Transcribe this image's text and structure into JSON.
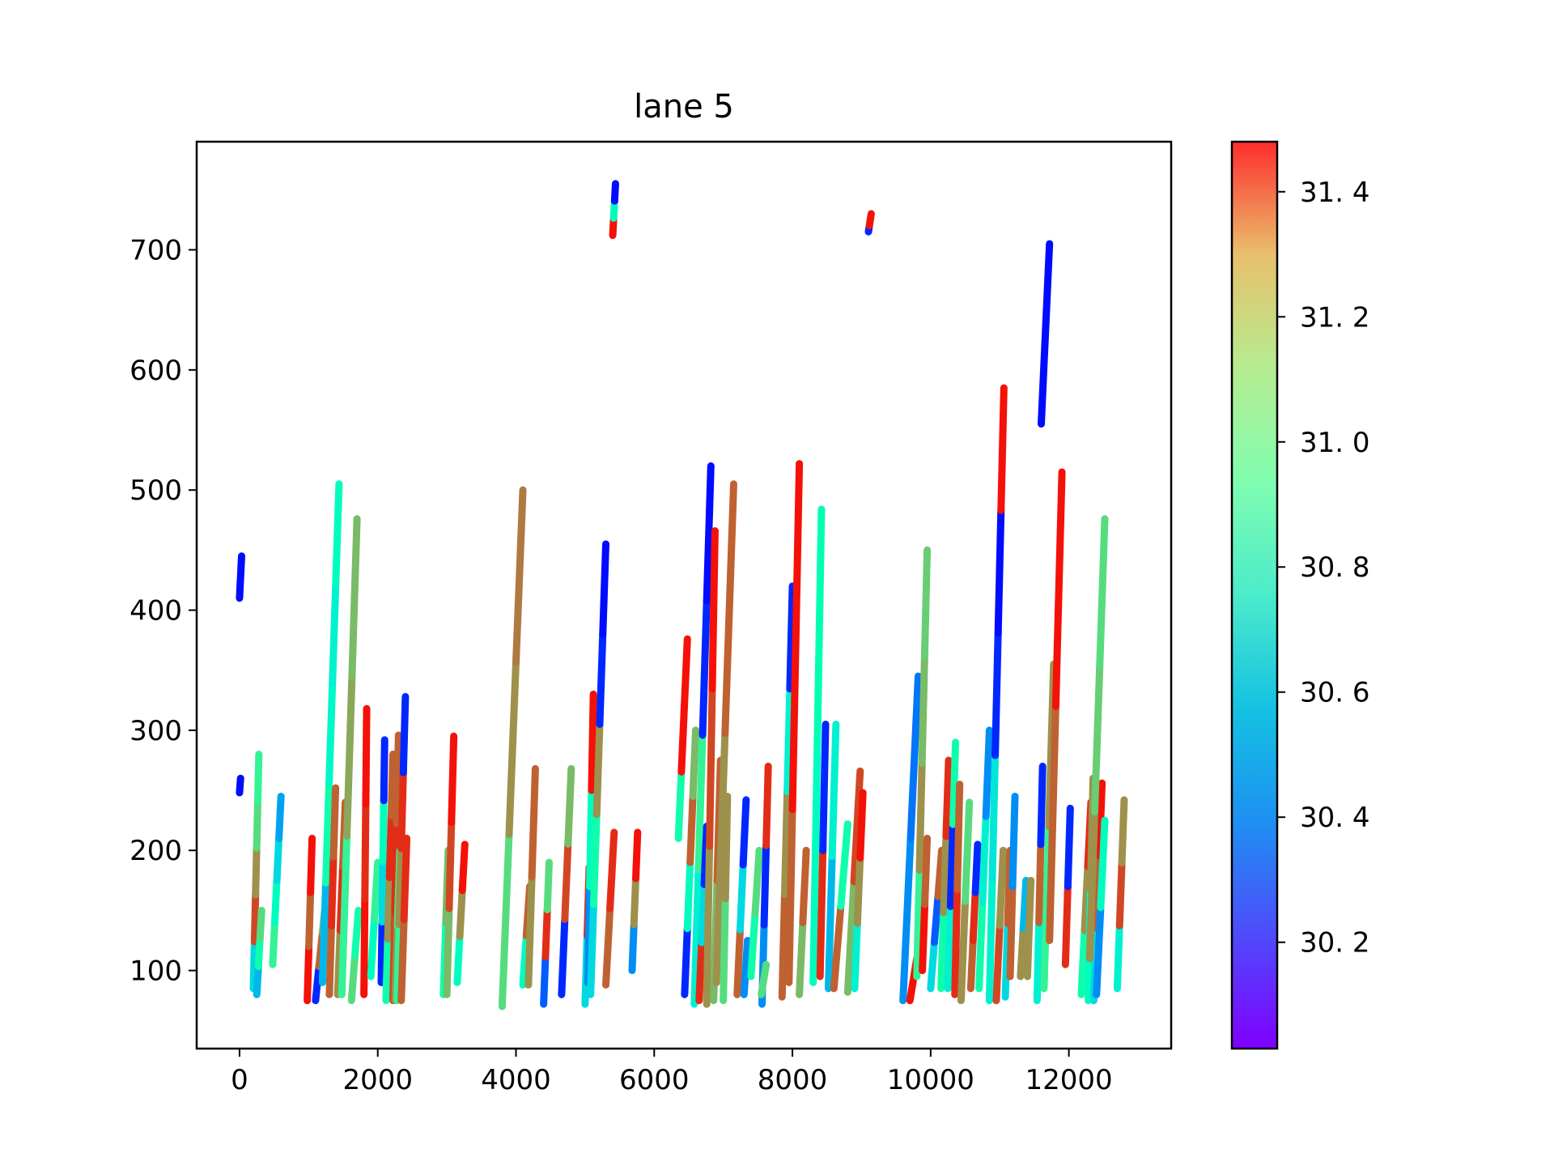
{
  "chart_data": {
    "type": "scatter",
    "title": "lane 5",
    "xlabel": "",
    "ylabel": "",
    "xlim": [
      -620,
      13480
    ],
    "ylim": [
      35,
      790
    ],
    "x_ticks": [
      0,
      2000,
      4000,
      6000,
      8000,
      10000,
      12000
    ],
    "x_tick_labels": [
      "0",
      "2000",
      "4000",
      "6000",
      "8000",
      "10000",
      "12000"
    ],
    "y_ticks": [
      100,
      200,
      300,
      400,
      500,
      600,
      700
    ],
    "y_tick_labels": [
      "100",
      "200",
      "300",
      "400",
      "500",
      "600",
      "700"
    ],
    "grid": false,
    "colormap": "rainbow",
    "colorbar": {
      "range": [
        30.03,
        31.48
      ],
      "ticks": [
        30.2,
        30.4,
        30.6,
        30.8,
        31.0,
        31.2,
        31.4
      ],
      "tick_labels": [
        "30. 2",
        "30. 4",
        "30. 6",
        "30. 8",
        "31. 0",
        "31. 2",
        "31. 4"
      ]
    },
    "trajectories": [
      {
        "x0": 0,
        "x1": 30,
        "y0": 410,
        "y1": 445,
        "c": [
          30.05
        ]
      },
      {
        "x0": 0,
        "x1": 15,
        "y0": 248,
        "y1": 260,
        "c": [
          30.05
        ]
      },
      {
        "x0": 200,
        "x1": 280,
        "y0": 85,
        "y1": 280,
        "c": [
          30.5,
          31.35,
          31.2,
          31.0,
          30.9
        ]
      },
      {
        "x0": 250,
        "x1": 320,
        "y0": 80,
        "y1": 150,
        "c": [
          30.4,
          30.8,
          31.0
        ]
      },
      {
        "x0": 480,
        "x1": 600,
        "y0": 105,
        "y1": 245,
        "c": [
          30.9,
          30.7,
          30.5,
          30.35
        ]
      },
      {
        "x0": 980,
        "x1": 1050,
        "y0": 75,
        "y1": 210,
        "c": [
          31.45,
          31.3,
          31.45
        ]
      },
      {
        "x0": 1100,
        "x1": 1250,
        "y0": 75,
        "y1": 160,
        "c": [
          30.1,
          31.3,
          31.1
        ]
      },
      {
        "x0": 1200,
        "x1": 1440,
        "y0": 90,
        "y1": 505,
        "c": [
          30.4,
          30.8,
          30.65,
          30.6,
          30.7
        ]
      },
      {
        "x0": 1300,
        "x1": 1390,
        "y0": 80,
        "y1": 252,
        "c": [
          31.3,
          31.4,
          31.3
        ]
      },
      {
        "x0": 1420,
        "x1": 1530,
        "y0": 80,
        "y1": 240,
        "c": [
          31.2,
          31.4,
          31.3
        ]
      },
      {
        "x0": 1480,
        "x1": 1700,
        "y0": 80,
        "y1": 476,
        "c": [
          30.9,
          31.15,
          31.1
        ]
      },
      {
        "x0": 1620,
        "x1": 1720,
        "y0": 75,
        "y1": 150,
        "c": [
          31.0,
          30.8
        ]
      },
      {
        "x0": 1800,
        "x1": 1840,
        "y0": 80,
        "y1": 318,
        "c": [
          31.45,
          31.4,
          31.45
        ]
      },
      {
        "x0": 1900,
        "x1": 2000,
        "y0": 95,
        "y1": 190,
        "c": [
          30.7,
          30.9
        ]
      },
      {
        "x0": 2050,
        "x1": 2100,
        "y0": 90,
        "y1": 292,
        "c": [
          30.1,
          30.5,
          30.7,
          30.1
        ]
      },
      {
        "x0": 2120,
        "x1": 2220,
        "y0": 75,
        "y1": 280,
        "c": [
          30.8,
          31.2,
          31.4,
          31.3
        ]
      },
      {
        "x0": 2220,
        "x1": 2300,
        "y0": 75,
        "y1": 296,
        "c": [
          31.35,
          31.4,
          31.3
        ]
      },
      {
        "x0": 2250,
        "x1": 2320,
        "y0": 75,
        "y1": 200,
        "c": [
          31.2,
          31.0
        ]
      },
      {
        "x0": 2280,
        "x1": 2400,
        "y0": 75,
        "y1": 328,
        "c": [
          30.9,
          31.2,
          31.4,
          30.1
        ]
      },
      {
        "x0": 2340,
        "x1": 2420,
        "y0": 75,
        "y1": 210,
        "c": [
          31.3,
          31.4
        ]
      },
      {
        "x0": 2950,
        "x1": 3020,
        "y0": 80,
        "y1": 200,
        "c": [
          30.8,
          31.1
        ]
      },
      {
        "x0": 3000,
        "x1": 3100,
        "y0": 80,
        "y1": 295,
        "c": [
          31.1,
          31.35,
          31.45
        ]
      },
      {
        "x0": 3150,
        "x1": 3260,
        "y0": 90,
        "y1": 205,
        "c": [
          30.7,
          31.2,
          31.45
        ]
      },
      {
        "x0": 3800,
        "x1": 4100,
        "y0": 70,
        "y1": 500,
        "c": [
          31.0,
          31.2,
          31.25
        ]
      },
      {
        "x0": 4100,
        "x1": 4200,
        "y0": 88,
        "y1": 170,
        "c": [
          30.7,
          31.3
        ]
      },
      {
        "x0": 4180,
        "x1": 4280,
        "y0": 88,
        "y1": 268,
        "c": [
          31.2,
          31.3
        ]
      },
      {
        "x0": 4400,
        "x1": 4480,
        "y0": 72,
        "y1": 190,
        "c": [
          30.2,
          31.4,
          31.0
        ]
      },
      {
        "x0": 4660,
        "x1": 4800,
        "y0": 80,
        "y1": 268,
        "c": [
          30.1,
          31.35,
          31.1
        ]
      },
      {
        "x0": 5000,
        "x1": 5060,
        "y0": 72,
        "y1": 186,
        "c": [
          30.5,
          31.4
        ]
      },
      {
        "x0": 5040,
        "x1": 5120,
        "y0": 90,
        "y1": 330,
        "c": [
          30.3,
          30.7,
          31.45
        ]
      },
      {
        "x0": 5080,
        "x1": 5300,
        "y0": 80,
        "y1": 455,
        "c": [
          30.5,
          30.8,
          31.2,
          30.1,
          30.05
        ]
      },
      {
        "x0": 5300,
        "x1": 5420,
        "y0": 88,
        "y1": 215,
        "c": [
          31.3,
          31.4
        ]
      },
      {
        "x0": 5400,
        "x1": 5440,
        "y0": 712,
        "y1": 755,
        "c": [
          31.45,
          30.7,
          30.05
        ]
      },
      {
        "x0": 5680,
        "x1": 5760,
        "y0": 100,
        "y1": 215,
        "c": [
          30.3,
          31.2,
          31.45
        ]
      },
      {
        "x0": 6350,
        "x1": 6480,
        "y0": 210,
        "y1": 376,
        "c": [
          30.8,
          31.45,
          31.45
        ]
      },
      {
        "x0": 6440,
        "x1": 6600,
        "y0": 80,
        "y1": 300,
        "c": [
          30.1,
          30.7,
          31.3,
          31.1
        ]
      },
      {
        "x0": 6580,
        "x1": 6820,
        "y0": 72,
        "y1": 520,
        "c": [
          30.6,
          30.9,
          30.1,
          30.05
        ]
      },
      {
        "x0": 6650,
        "x1": 6760,
        "y0": 75,
        "y1": 220,
        "c": [
          31.4,
          30.5,
          30.1
        ]
      },
      {
        "x0": 6760,
        "x1": 6880,
        "y0": 72,
        "y1": 466,
        "c": [
          31.2,
          31.35,
          31.45
        ]
      },
      {
        "x0": 6860,
        "x1": 6960,
        "y0": 75,
        "y1": 275,
        "c": [
          31.1,
          31.3
        ]
      },
      {
        "x0": 6900,
        "x1": 7150,
        "y0": 90,
        "y1": 505,
        "c": [
          31.2,
          31.3
        ]
      },
      {
        "x0": 7000,
        "x1": 7060,
        "y0": 75,
        "y1": 245,
        "c": [
          31.0,
          31.2
        ]
      },
      {
        "x0": 7200,
        "x1": 7330,
        "y0": 80,
        "y1": 242,
        "c": [
          31.3,
          30.5,
          30.1
        ]
      },
      {
        "x0": 7300,
        "x1": 7350,
        "y0": 80,
        "y1": 125,
        "c": [
          30.3
        ]
      },
      {
        "x0": 7400,
        "x1": 7520,
        "y0": 95,
        "y1": 200,
        "c": [
          30.8,
          31.0
        ]
      },
      {
        "x0": 7560,
        "x1": 7650,
        "y0": 72,
        "y1": 270,
        "c": [
          30.3,
          30.1,
          31.4
        ]
      },
      {
        "x0": 7550,
        "x1": 7620,
        "y0": 80,
        "y1": 105,
        "c": [
          31.0
        ]
      },
      {
        "x0": 7850,
        "x1": 8000,
        "y0": 78,
        "y1": 420,
        "c": [
          31.3,
          31.2,
          30.6,
          30.1
        ]
      },
      {
        "x0": 7950,
        "x1": 8100,
        "y0": 90,
        "y1": 522,
        "c": [
          31.3,
          31.45,
          31.45
        ]
      },
      {
        "x0": 8100,
        "x1": 8200,
        "y0": 80,
        "y1": 200,
        "c": [
          31.1,
          31.3
        ]
      },
      {
        "x0": 8300,
        "x1": 8420,
        "y0": 90,
        "y1": 484,
        "c": [
          30.7,
          30.75
        ]
      },
      {
        "x0": 8400,
        "x1": 8480,
        "y0": 95,
        "y1": 305,
        "c": [
          31.4,
          30.1
        ]
      },
      {
        "x0": 8520,
        "x1": 8630,
        "y0": 85,
        "y1": 305,
        "c": [
          30.4,
          30.6
        ]
      },
      {
        "x0": 8600,
        "x1": 8800,
        "y0": 85,
        "y1": 222,
        "c": [
          31.3,
          30.8
        ]
      },
      {
        "x0": 8800,
        "x1": 8980,
        "y0": 82,
        "y1": 266,
        "c": [
          31.1,
          31.35
        ]
      },
      {
        "x0": 8900,
        "x1": 9020,
        "y0": 85,
        "y1": 248,
        "c": [
          30.6,
          31.2,
          31.45
        ]
      },
      {
        "x0": 9100,
        "x1": 9140,
        "y0": 715,
        "y1": 730,
        "c": [
          30.1,
          31.45,
          31.45
        ]
      },
      {
        "x0": 9600,
        "x1": 9820,
        "y0": 75,
        "y1": 345,
        "c": [
          30.3,
          30.25
        ]
      },
      {
        "x0": 9700,
        "x1": 9800,
        "y0": 75,
        "y1": 110,
        "c": [
          31.45
        ]
      },
      {
        "x0": 9800,
        "x1": 9950,
        "y0": 95,
        "y1": 450,
        "c": [
          30.9,
          31.2,
          31.1,
          31.05
        ]
      },
      {
        "x0": 9880,
        "x1": 9950,
        "y0": 100,
        "y1": 210,
        "c": [
          31.45,
          31.3
        ]
      },
      {
        "x0": 10000,
        "x1": 10160,
        "y0": 85,
        "y1": 200,
        "c": [
          30.5,
          30.2,
          31.3
        ]
      },
      {
        "x0": 10150,
        "x1": 10260,
        "y0": 85,
        "y1": 275,
        "c": [
          30.8,
          31.2,
          31.4
        ]
      },
      {
        "x0": 10250,
        "x1": 10360,
        "y0": 85,
        "y1": 290,
        "c": [
          30.6,
          30.1,
          30.8
        ]
      },
      {
        "x0": 10350,
        "x1": 10420,
        "y0": 80,
        "y1": 255,
        "c": [
          31.4,
          31.3
        ]
      },
      {
        "x0": 10440,
        "x1": 10560,
        "y0": 75,
        "y1": 240,
        "c": [
          31.2,
          31.0
        ]
      },
      {
        "x0": 10580,
        "x1": 10680,
        "y0": 85,
        "y1": 205,
        "c": [
          31.3,
          31.4,
          30.1
        ]
      },
      {
        "x0": 10700,
        "x1": 10850,
        "y0": 85,
        "y1": 300,
        "c": [
          30.8,
          30.6,
          30.3
        ]
      },
      {
        "x0": 10850,
        "x1": 11060,
        "y0": 75,
        "y1": 585,
        "c": [
          30.6,
          30.55,
          30.1,
          30.05,
          31.45
        ]
      },
      {
        "x0": 10950,
        "x1": 11050,
        "y0": 75,
        "y1": 200,
        "c": [
          31.35,
          31.2
        ]
      },
      {
        "x0": 11080,
        "x1": 11150,
        "y0": 78,
        "y1": 200,
        "c": [
          30.5,
          31.3
        ]
      },
      {
        "x0": 11150,
        "x1": 11220,
        "y0": 95,
        "y1": 245,
        "c": [
          31.3,
          30.3
        ]
      },
      {
        "x0": 11300,
        "x1": 11380,
        "y0": 95,
        "y1": 175,
        "c": [
          31.2,
          30.4
        ]
      },
      {
        "x0": 11400,
        "x1": 11450,
        "y0": 95,
        "y1": 175,
        "c": [
          31.2
        ]
      },
      {
        "x0": 11540,
        "x1": 11620,
        "y0": 75,
        "y1": 270,
        "c": [
          30.6,
          31.3,
          30.1
        ]
      },
      {
        "x0": 11600,
        "x1": 11720,
        "y0": 555,
        "y1": 705,
        "c": [
          30.05
        ]
      },
      {
        "x0": 11640,
        "x1": 11780,
        "y0": 85,
        "y1": 355,
        "c": [
          30.9,
          31.2
        ]
      },
      {
        "x0": 11720,
        "x1": 11900,
        "y0": 125,
        "y1": 515,
        "c": [
          31.3,
          31.45
        ]
      },
      {
        "x0": 11950,
        "x1": 12020,
        "y0": 105,
        "y1": 235,
        "c": [
          31.4,
          30.1
        ]
      },
      {
        "x0": 12180,
        "x1": 12320,
        "y0": 80,
        "y1": 240,
        "c": [
          30.8,
          31.2,
          31.4
        ]
      },
      {
        "x0": 12280,
        "x1": 12350,
        "y0": 75,
        "y1": 260,
        "c": [
          30.7,
          31.2
        ]
      },
      {
        "x0": 12360,
        "x1": 12480,
        "y0": 75,
        "y1": 256,
        "c": [
          30.5,
          31.3,
          31.45
        ]
      },
      {
        "x0": 12400,
        "x1": 12520,
        "y0": 80,
        "y1": 225,
        "c": [
          30.3,
          30.7
        ]
      },
      {
        "x0": 12300,
        "x1": 12520,
        "y0": 110,
        "y1": 476,
        "c": [
          31.2,
          31.05,
          31.0
        ]
      },
      {
        "x0": 12700,
        "x1": 12800,
        "y0": 85,
        "y1": 242,
        "c": [
          30.6,
          31.35,
          31.2
        ]
      }
    ]
  }
}
